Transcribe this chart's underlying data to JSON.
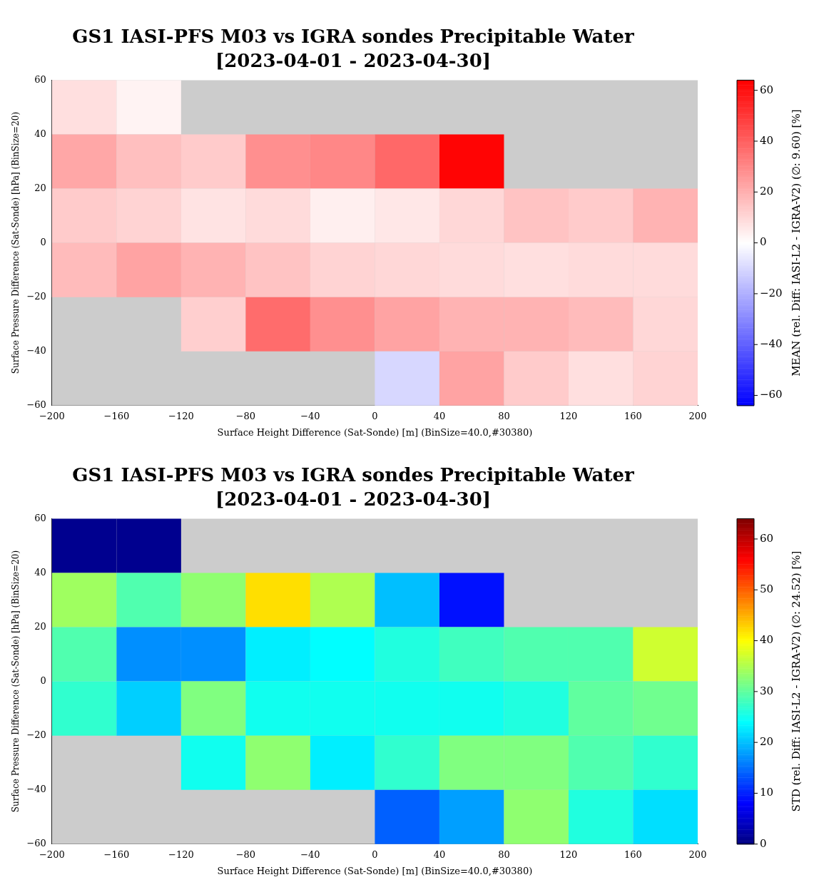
{
  "chart_data": [
    {
      "type": "heatmap",
      "title": "GS1 IASI-PFS M03 vs IGRA sondes Precipitable Water",
      "subtitle": "[2023-04-01 - 2023-04-30]",
      "xlabel": "Surface Height Difference (Sat-Sonde) [m] (BinSize=40.0,#30380)",
      "ylabel": "Surface Pressure Difference (Sat-Sonde) [hPa] (BinSize=20)",
      "clabel": "MEAN (rel. Diff: IASI-L2 - IGRA-V2) (∅: 9.60) [%]",
      "xlim": [
        -200,
        200
      ],
      "xticks": [
        -200,
        -160,
        -120,
        -80,
        -40,
        0,
        40,
        80,
        120,
        160,
        200
      ],
      "ylim": [
        -60,
        60
      ],
      "yticks": [
        -60,
        -40,
        -20,
        0,
        20,
        40,
        60
      ],
      "clim": [
        -64,
        64
      ],
      "cticks": [
        -60,
        -40,
        -20,
        0,
        20,
        40,
        60
      ],
      "cells": [
        [
          8,
          3,
          null,
          null,
          null,
          null,
          null,
          null,
          null,
          null
        ],
        [
          22,
          16,
          13,
          28,
          30,
          38,
          63,
          null,
          null,
          null
        ],
        [
          13,
          11,
          7,
          9,
          4,
          6,
          10,
          15,
          13,
          19
        ],
        [
          17,
          23,
          19,
          15,
          11,
          10,
          9,
          8,
          9,
          9
        ],
        [
          null,
          null,
          12,
          37,
          28,
          23,
          19,
          19,
          17,
          10
        ],
        [
          null,
          null,
          null,
          null,
          null,
          -10,
          23,
          13,
          8,
          11
        ]
      ]
    },
    {
      "type": "heatmap",
      "title": "GS1 IASI-PFS M03 vs IGRA sondes Precipitable Water",
      "subtitle": "[2023-04-01 - 2023-04-30]",
      "xlabel": "Surface Height Difference (Sat-Sonde) [m] (BinSize=40.0,#30380)",
      "ylabel": "Surface Pressure Difference (Sat-Sonde) [hPa] (BinSize=20)",
      "clabel": "STD (rel. Diff: IASI-L2 - IGRA-V2) (∅: 24.52) [%]",
      "xlim": [
        -200,
        200
      ],
      "xticks": [
        -200,
        -160,
        -120,
        -80,
        -40,
        0,
        40,
        80,
        120,
        160,
        200
      ],
      "ylim": [
        -60,
        60
      ],
      "yticks": [
        -60,
        -40,
        -20,
        0,
        20,
        40,
        60
      ],
      "clim": [
        0,
        64
      ],
      "cticks": [
        0,
        10,
        20,
        30,
        40,
        50,
        60
      ],
      "cells": [
        [
          1,
          1,
          null,
          null,
          null,
          null,
          null,
          null,
          null,
          null
        ],
        [
          34,
          29,
          33,
          42,
          35,
          20,
          9,
          null,
          null,
          null
        ],
        [
          29,
          17,
          17,
          23,
          24,
          26,
          28,
          29,
          29,
          37
        ],
        [
          27,
          21,
          32,
          25,
          25,
          25,
          25,
          26,
          30,
          31
        ],
        [
          null,
          null,
          25,
          33,
          23,
          27,
          32,
          32,
          29,
          27
        ],
        [
          null,
          null,
          null,
          null,
          null,
          14,
          18,
          33,
          26,
          22
        ]
      ]
    }
  ]
}
